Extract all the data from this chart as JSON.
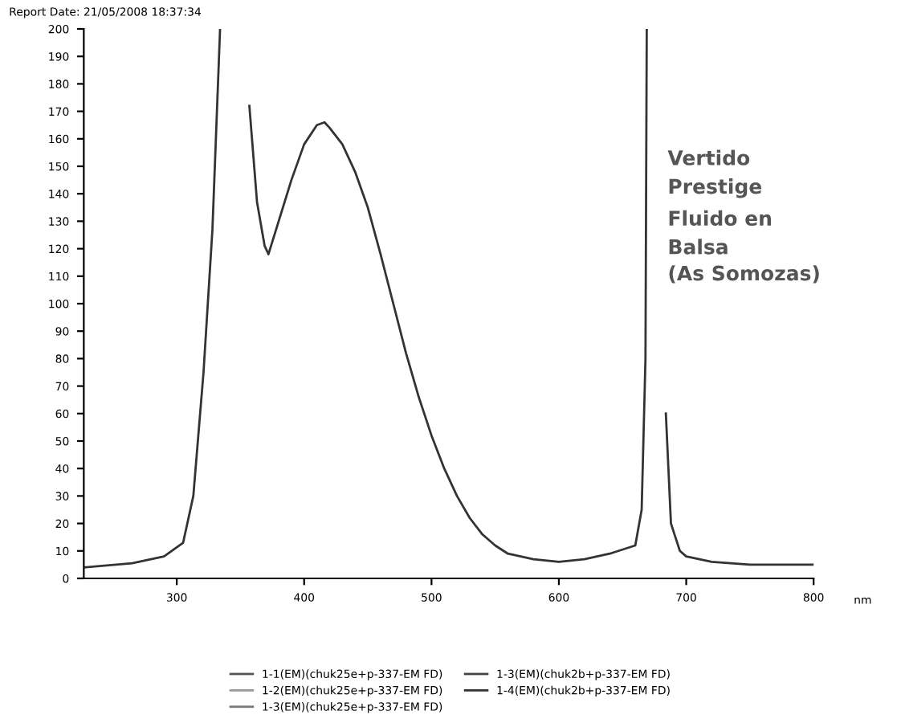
{
  "chart_data": {
    "type": "line",
    "title": "Report Date: 21/05/2008 18:37:34",
    "xlabel": "nm",
    "annotations": [
      "Vertido\nPrestige",
      "Fluido en\nBalsa",
      "(As Somozas)"
    ],
    "x": [
      227,
      265,
      290,
      305,
      313,
      321,
      328,
      334,
      355,
      357,
      363,
      369,
      372,
      380,
      390,
      400,
      410,
      416,
      420,
      430,
      440,
      450,
      460,
      470,
      480,
      490,
      500,
      510,
      520,
      530,
      540,
      550,
      560,
      580,
      600,
      620,
      640,
      660,
      665,
      668,
      669,
      682,
      684,
      688,
      695,
      700,
      720,
      750,
      800
    ],
    "series": [
      {
        "name": "1-1(EM)(chuk25e+p-337-EM FD)",
        "color": "#555555",
        "values": [
          null,
          null,
          null,
          null,
          null,
          null,
          null,
          null,
          null,
          null,
          null,
          null,
          null,
          null,
          null,
          null,
          null,
          null,
          null,
          null,
          null,
          null,
          null,
          null,
          null,
          null,
          null,
          null,
          null,
          null,
          null,
          null,
          null,
          null,
          null,
          null,
          null,
          null,
          null,
          null,
          null,
          null,
          null,
          null,
          null,
          null,
          null,
          null,
          null
        ]
      },
      {
        "name": "1-2(EM)(chuk25e+p-337-EM FD)",
        "color": "#999999",
        "values": [
          null,
          null,
          null,
          null,
          null,
          null,
          null,
          null,
          null,
          null,
          null,
          null,
          null,
          null,
          null,
          null,
          null,
          null,
          null,
          null,
          null,
          null,
          null,
          null,
          null,
          null,
          null,
          null,
          null,
          null,
          null,
          null,
          null,
          null,
          null,
          null,
          null,
          null,
          null,
          null,
          null,
          null,
          null,
          null,
          null,
          null,
          null,
          null,
          null
        ]
      },
      {
        "name": "1-3(EM)(chuk25e+p-337-EM FD)",
        "color": "#777777",
        "values": [
          null,
          null,
          null,
          null,
          null,
          null,
          null,
          null,
          null,
          null,
          null,
          null,
          null,
          null,
          null,
          null,
          null,
          null,
          null,
          null,
          null,
          null,
          null,
          null,
          null,
          null,
          null,
          null,
          null,
          null,
          null,
          null,
          null,
          null,
          null,
          null,
          null,
          null,
          null,
          null,
          null,
          null,
          null,
          null,
          null,
          null,
          null,
          null,
          null
        ]
      },
      {
        "name": "1-3(EM)(chuk2b+p-337-EM FD)",
        "color": "#444444",
        "values": [
          null,
          null,
          null,
          null,
          null,
          null,
          null,
          null,
          null,
          null,
          null,
          null,
          null,
          null,
          null,
          null,
          null,
          null,
          null,
          null,
          null,
          null,
          null,
          null,
          null,
          null,
          null,
          null,
          null,
          null,
          null,
          null,
          null,
          null,
          null,
          null,
          null,
          null,
          null,
          null,
          null,
          null,
          null,
          null,
          null,
          null,
          null,
          null,
          null
        ]
      },
      {
        "name": "1-4(EM)(chuk2b+p-337-EM FD)",
        "color": "#333333",
        "values": [
          4,
          5.5,
          8,
          13,
          30,
          75,
          127,
          200,
          null,
          172,
          137,
          121,
          118,
          130,
          145,
          158,
          165,
          166,
          164,
          158,
          148,
          135,
          118,
          100,
          82,
          66,
          52,
          40,
          30,
          22,
          16,
          12,
          9,
          7,
          6,
          7,
          9,
          12,
          25,
          80,
          200,
          null,
          60,
          20,
          10,
          8,
          6,
          5,
          5
        ]
      }
    ],
    "xlim": [
      227,
      800
    ],
    "xticks": [
      300,
      400,
      500,
      600,
      700,
      800
    ],
    "ylim": [
      0,
      200
    ],
    "yticks": [
      0,
      10,
      20,
      30,
      40,
      50,
      60,
      70,
      80,
      90,
      100,
      110,
      120,
      130,
      140,
      150,
      160,
      170,
      180,
      190,
      200
    ],
    "grid": false,
    "legend": "bottom",
    "line_style": "solid",
    "marker": "none"
  }
}
